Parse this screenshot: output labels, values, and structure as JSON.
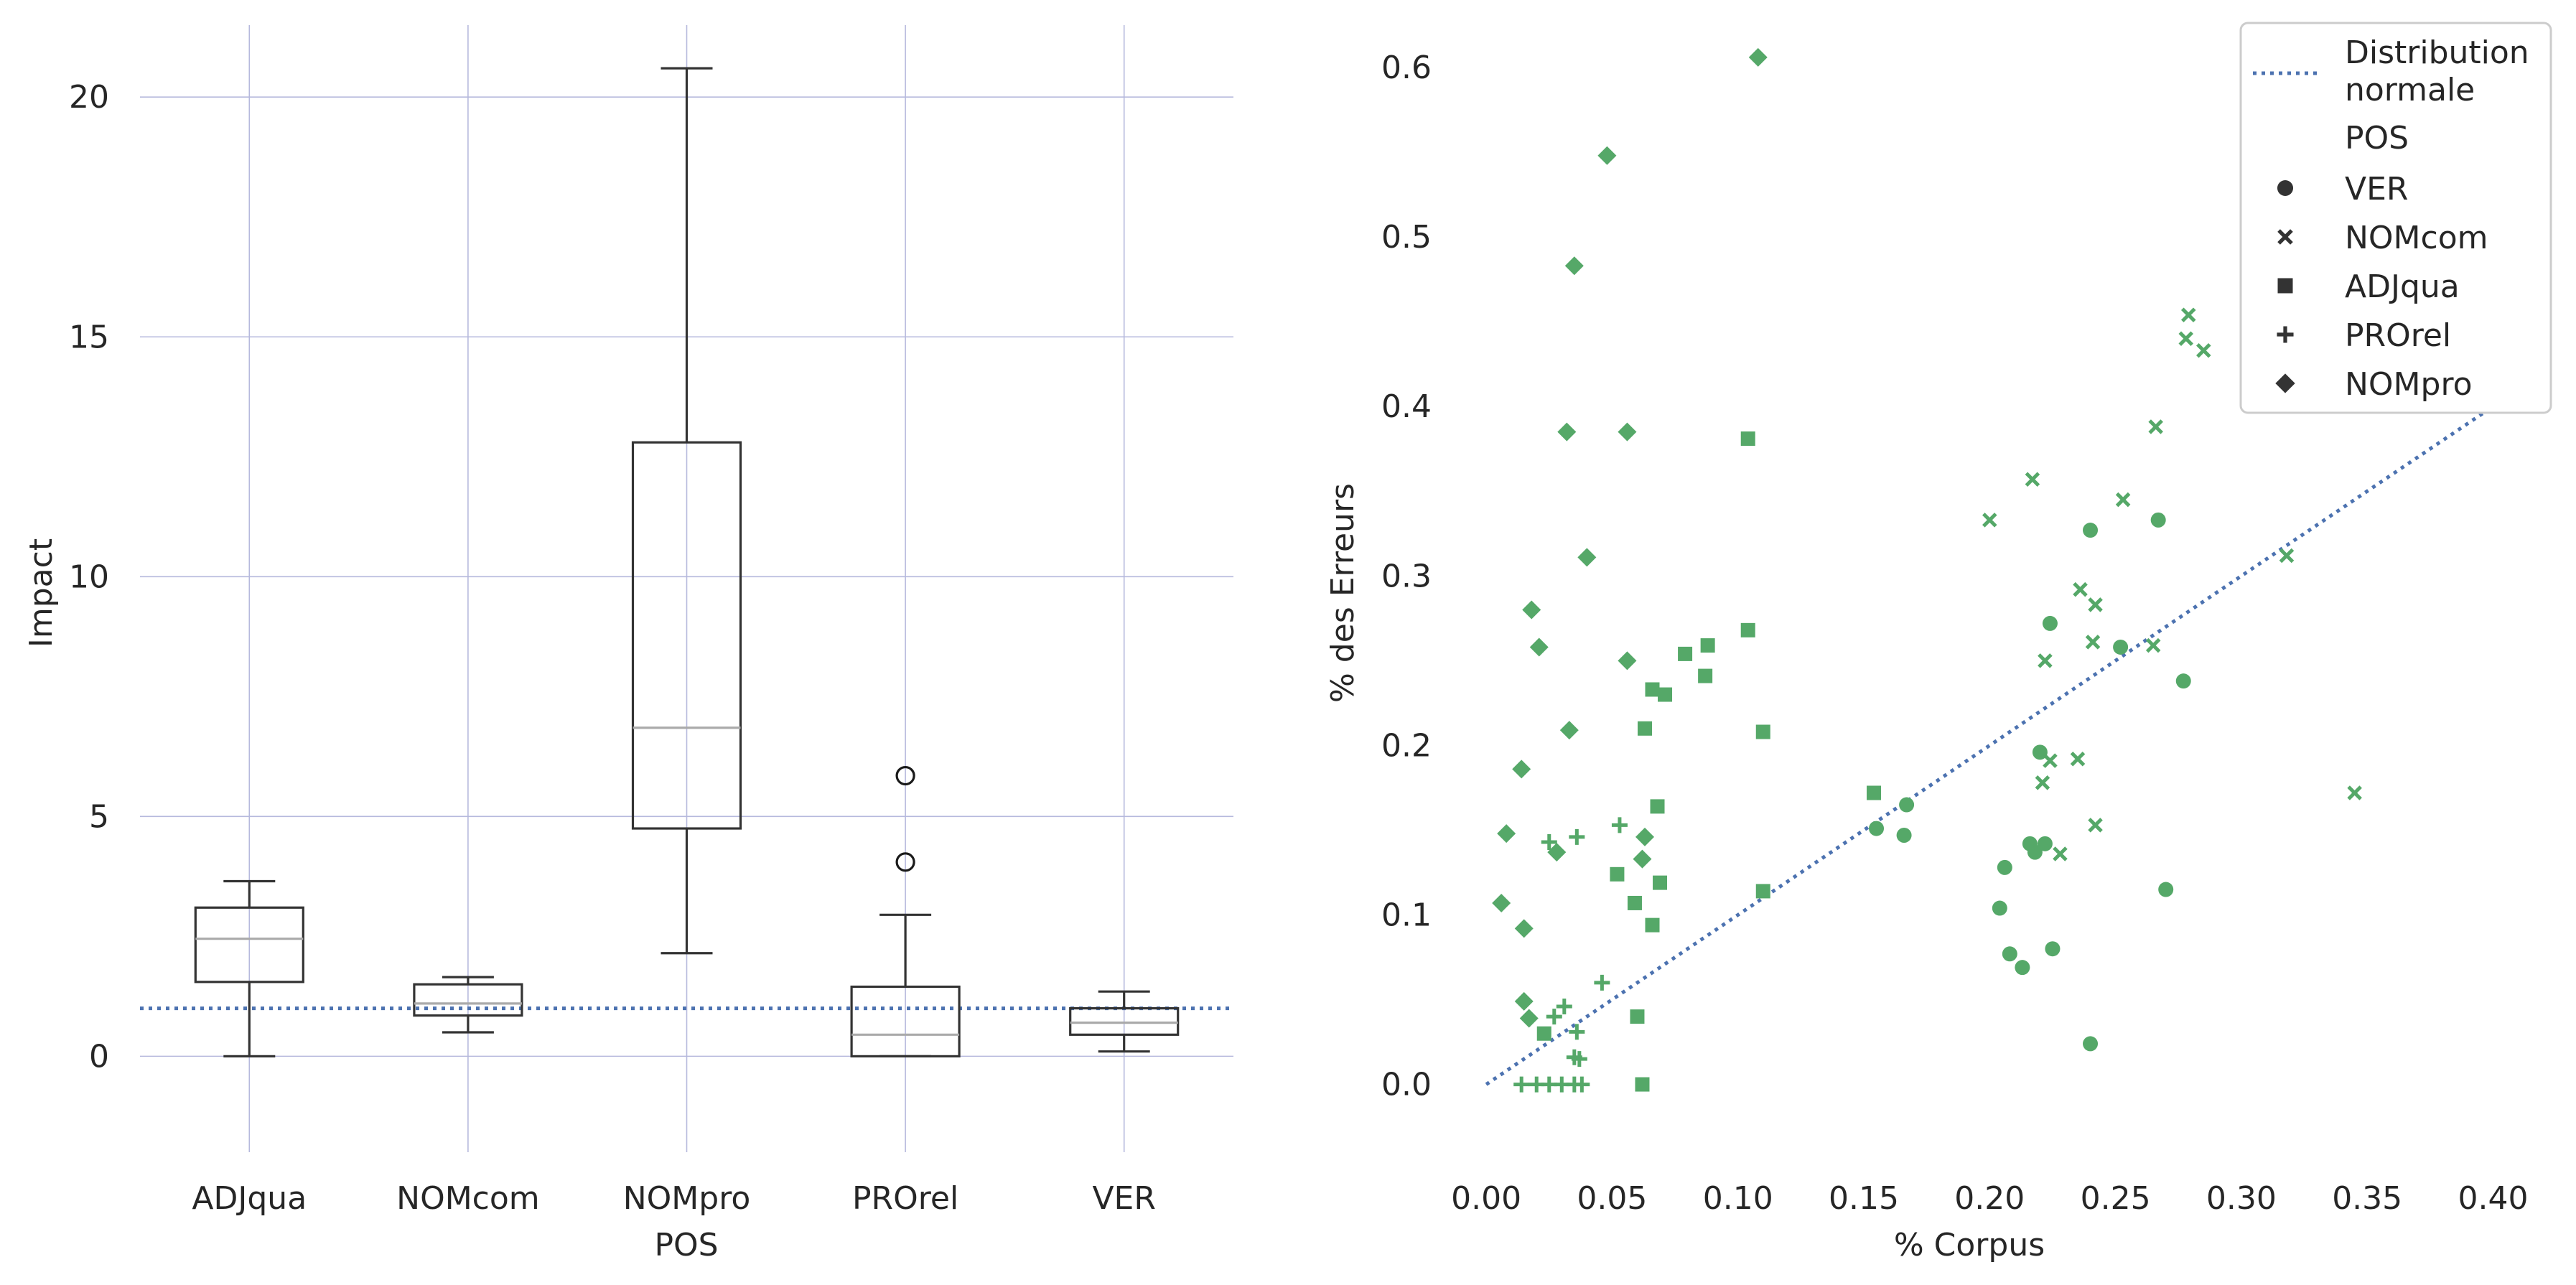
{
  "chart_data": [
    {
      "type": "box",
      "title": "",
      "xlabel": "POS",
      "ylabel": "Impact",
      "ylim": [
        -2.0,
        21.5
      ],
      "yticks": [
        0,
        5,
        10,
        15,
        20
      ],
      "categories": [
        "ADJqua",
        "NOMcom",
        "NOMpro",
        "PROrel",
        "VER"
      ],
      "boxes": [
        {
          "whislo": 0.0,
          "q1": 1.55,
          "med": 2.45,
          "q3": 3.1,
          "whishi": 3.65,
          "fliers": []
        },
        {
          "whislo": 0.5,
          "q1": 0.85,
          "med": 1.1,
          "q3": 1.5,
          "whishi": 1.65,
          "fliers": []
        },
        {
          "whislo": 2.15,
          "q1": 4.75,
          "med": 6.85,
          "q3": 12.8,
          "whishi": 20.6,
          "fliers": []
        },
        {
          "whislo": 0.0,
          "q1": 0.0,
          "med": 0.45,
          "q3": 1.45,
          "whishi": 2.95,
          "fliers": [
            4.05,
            5.85
          ]
        },
        {
          "whislo": 0.1,
          "q1": 0.45,
          "med": 0.7,
          "q3": 1.0,
          "whishi": 1.35,
          "fliers": []
        }
      ],
      "reference_line": {
        "y": 1.0,
        "style": "dotted",
        "color": "#4c72b0"
      },
      "grid": true
    },
    {
      "type": "scatter",
      "title": "",
      "xlabel": "% Corpus",
      "ylabel": "% des Erreurs",
      "xlim": [
        -0.02,
        0.405
      ],
      "ylim": [
        -0.04,
        0.625
      ],
      "xticks": [
        0.0,
        0.05,
        0.1,
        0.15,
        0.2,
        0.25,
        0.3,
        0.35,
        0.4
      ],
      "yticks": [
        0.0,
        0.1,
        0.2,
        0.3,
        0.4,
        0.5,
        0.6
      ],
      "grid": false,
      "point_color": "#55a868",
      "reference_line": {
        "name": "Distribution normale",
        "from": [
          0.0,
          0.0
        ],
        "to": [
          0.4,
          0.4
        ],
        "style": "dotted",
        "color": "#4c72b0"
      },
      "legend": {
        "position": "top-right",
        "line_label": [
          "Distribution",
          "normale"
        ],
        "group_title": "POS",
        "entries": [
          {
            "label": "VER",
            "marker": "circle"
          },
          {
            "label": "NOMcom",
            "marker": "x"
          },
          {
            "label": "ADJqua",
            "marker": "square"
          },
          {
            "label": "PROrel",
            "marker": "plus"
          },
          {
            "label": "NOMpro",
            "marker": "diamond"
          }
        ]
      },
      "series": [
        {
          "name": "VER",
          "marker": "circle",
          "points": [
            [
              0.24,
              0.327
            ],
            [
              0.267,
              0.333
            ],
            [
              0.224,
              0.272
            ],
            [
              0.252,
              0.258
            ],
            [
              0.277,
              0.238
            ],
            [
              0.22,
              0.196
            ],
            [
              0.167,
              0.165
            ],
            [
              0.155,
              0.151
            ],
            [
              0.166,
              0.147
            ],
            [
              0.216,
              0.142
            ],
            [
              0.222,
              0.142
            ],
            [
              0.218,
              0.137
            ],
            [
              0.206,
              0.128
            ],
            [
              0.27,
              0.115
            ],
            [
              0.204,
              0.104
            ],
            [
              0.208,
              0.077
            ],
            [
              0.225,
              0.08
            ],
            [
              0.213,
              0.069
            ],
            [
              0.24,
              0.024
            ]
          ]
        },
        {
          "name": "NOMcom",
          "marker": "x",
          "points": [
            [
              0.279,
              0.454
            ],
            [
              0.278,
              0.44
            ],
            [
              0.285,
              0.433
            ],
            [
              0.266,
              0.388
            ],
            [
              0.217,
              0.357
            ],
            [
              0.253,
              0.345
            ],
            [
              0.2,
              0.333
            ],
            [
              0.318,
              0.312
            ],
            [
              0.236,
              0.292
            ],
            [
              0.242,
              0.283
            ],
            [
              0.241,
              0.261
            ],
            [
              0.265,
              0.259
            ],
            [
              0.222,
              0.25
            ],
            [
              0.224,
              0.191
            ],
            [
              0.235,
              0.192
            ],
            [
              0.221,
              0.178
            ],
            [
              0.345,
              0.172
            ],
            [
              0.242,
              0.153
            ],
            [
              0.228,
              0.136
            ]
          ]
        },
        {
          "name": "ADJqua",
          "marker": "square",
          "points": [
            [
              0.104,
              0.381
            ],
            [
              0.104,
              0.268
            ],
            [
              0.088,
              0.259
            ],
            [
              0.079,
              0.254
            ],
            [
              0.087,
              0.241
            ],
            [
              0.066,
              0.233
            ],
            [
              0.071,
              0.23
            ],
            [
              0.063,
              0.21
            ],
            [
              0.11,
              0.208
            ],
            [
              0.154,
              0.172
            ],
            [
              0.068,
              0.164
            ],
            [
              0.11,
              0.114
            ],
            [
              0.069,
              0.119
            ],
            [
              0.052,
              0.124
            ],
            [
              0.059,
              0.107
            ],
            [
              0.066,
              0.094
            ],
            [
              0.06,
              0.04
            ],
            [
              0.023,
              0.03
            ],
            [
              0.062,
              0.0
            ]
          ]
        },
        {
          "name": "PROrel",
          "marker": "plus",
          "points": [
            [
              0.053,
              0.153
            ],
            [
              0.036,
              0.146
            ],
            [
              0.025,
              0.143
            ],
            [
              0.046,
              0.06
            ],
            [
              0.031,
              0.046
            ],
            [
              0.027,
              0.04
            ],
            [
              0.036,
              0.031
            ],
            [
              0.035,
              0.016
            ],
            [
              0.037,
              0.015
            ],
            [
              0.014,
              0.0
            ],
            [
              0.02,
              0.0
            ],
            [
              0.025,
              0.0
            ],
            [
              0.03,
              0.0
            ],
            [
              0.035,
              0.0
            ],
            [
              0.038,
              0.0
            ]
          ]
        },
        {
          "name": "NOMpro",
          "marker": "diamond",
          "points": [
            [
              0.108,
              0.606
            ],
            [
              0.048,
              0.548
            ],
            [
              0.035,
              0.483
            ],
            [
              0.032,
              0.385
            ],
            [
              0.056,
              0.385
            ],
            [
              0.04,
              0.311
            ],
            [
              0.018,
              0.28
            ],
            [
              0.021,
              0.258
            ],
            [
              0.056,
              0.25
            ],
            [
              0.033,
              0.209
            ],
            [
              0.014,
              0.186
            ],
            [
              0.008,
              0.148
            ],
            [
              0.063,
              0.146
            ],
            [
              0.028,
              0.137
            ],
            [
              0.062,
              0.133
            ],
            [
              0.006,
              0.107
            ],
            [
              0.015,
              0.092
            ],
            [
              0.015,
              0.049
            ],
            [
              0.017,
              0.039
            ]
          ]
        }
      ]
    }
  ]
}
